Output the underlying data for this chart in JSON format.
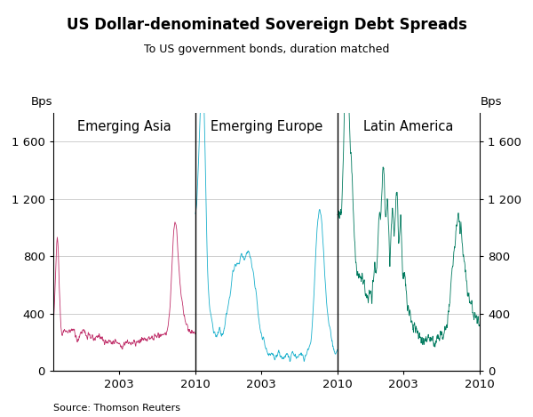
{
  "title": "US Dollar-denominated Sovereign Debt Spreads",
  "subtitle": "To US government bonds, duration matched",
  "source": "Source: Thomson Reuters",
  "bps_label": "Bps",
  "ylim": [
    0,
    1800
  ],
  "yticks": [
    0,
    400,
    800,
    1200,
    1600
  ],
  "ytick_labels": [
    "0",
    "400",
    "800",
    "1 200",
    "1 600"
  ],
  "panel_labels": [
    "Emerging Asia",
    "Emerging Europe",
    "Latin America"
  ],
  "xtick_labels": [
    "2003",
    "2010",
    "2003",
    "2010",
    "2003",
    "2010"
  ],
  "colors": {
    "asia": "#c0306a",
    "europe": "#1ab0cc",
    "latin": "#007a5e"
  },
  "background": "#ffffff",
  "grid_color": "#bbbbbb",
  "separator_color": "#000000",
  "n_points": 500
}
